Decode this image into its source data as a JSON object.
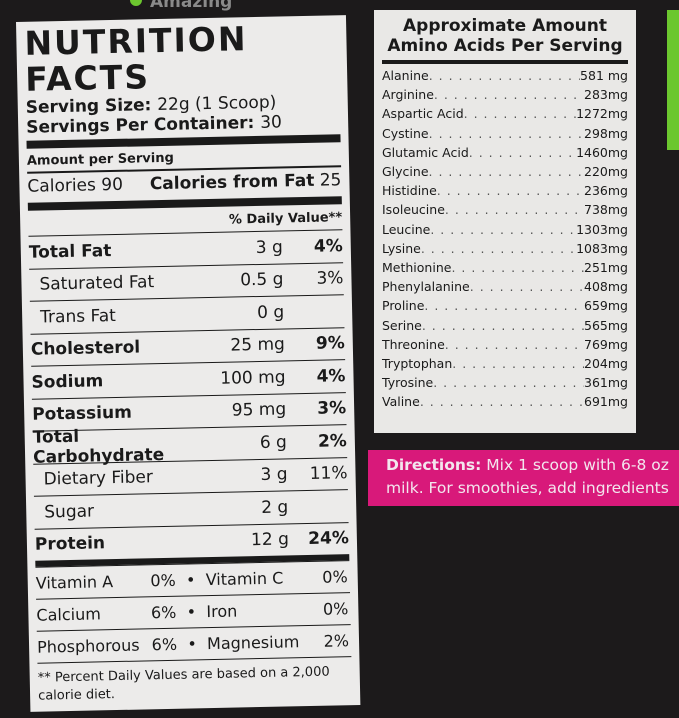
{
  "package": {
    "tagline": "Amazing",
    "accent_green": "#6cc72f",
    "accent_pink": "#d8197a"
  },
  "nutrition": {
    "title": "NUTRITION FACTS",
    "serving_size_label": "Serving Size:",
    "serving_size": "22g (1 Scoop)",
    "servings_label": "Servings Per Container:",
    "servings": "30",
    "amount_per_serving": "Amount per Serving",
    "calories_label": "Calories",
    "calories": "90",
    "calories_fat_label": "Calories from Fat",
    "calories_fat": "25",
    "dv_header": "% Daily Value**",
    "rows": [
      {
        "name": "Total Fat",
        "amount": "3 g",
        "dv": "4%"
      },
      {
        "name": "Saturated Fat",
        "amount": "0.5 g",
        "dv": "3%"
      },
      {
        "name": "Trans Fat",
        "amount": "0 g",
        "dv": ""
      },
      {
        "name": "Cholesterol",
        "amount": "25 mg",
        "dv": "9%"
      },
      {
        "name": "Sodium",
        "amount": "100 mg",
        "dv": "4%"
      },
      {
        "name": "Potassium",
        "amount": "95 mg",
        "dv": "3%"
      },
      {
        "name": "Total Carbohydrate",
        "amount": "6 g",
        "dv": "2%"
      },
      {
        "name": "Dietary Fiber",
        "amount": "3 g",
        "dv": "11%"
      },
      {
        "name": "Sugar",
        "amount": "2 g",
        "dv": ""
      },
      {
        "name": "Protein",
        "amount": "12 g",
        "dv": "24%"
      }
    ],
    "vitamins": [
      [
        {
          "name": "Vitamin A",
          "dv": "0%"
        },
        {
          "name": "Vitamin C",
          "dv": "0%"
        }
      ],
      [
        {
          "name": "Calcium",
          "dv": "6%"
        },
        {
          "name": "Iron",
          "dv": "0%"
        }
      ],
      [
        {
          "name": "Phosphorous",
          "dv": "6%"
        },
        {
          "name": "Magnesium",
          "dv": "2%"
        }
      ]
    ],
    "separator": "•",
    "footnote": "** Percent Daily Values are based on a 2,000 calorie diet."
  },
  "amino": {
    "title_line1": "Approximate Amount",
    "title_line2": "Amino Acids Per Serving",
    "items": [
      {
        "name": "Alanine",
        "amount": "581 mg"
      },
      {
        "name": "Arginine",
        "amount": "283mg"
      },
      {
        "name": "Aspartic Acid",
        "amount": "1272mg"
      },
      {
        "name": "Cystine",
        "amount": "298mg"
      },
      {
        "name": "Glutamic Acid",
        "amount": "1460mg"
      },
      {
        "name": "Glycine",
        "amount": "220mg"
      },
      {
        "name": "Histidine",
        "amount": "236mg"
      },
      {
        "name": "Isoleucine",
        "amount": "738mg"
      },
      {
        "name": "Leucine",
        "amount": "1303mg"
      },
      {
        "name": "Lysine",
        "amount": "1083mg"
      },
      {
        "name": "Methionine",
        "amount": "251mg"
      },
      {
        "name": "Phenylalanine",
        "amount": "408mg"
      },
      {
        "name": "Proline",
        "amount": "659mg"
      },
      {
        "name": "Serine",
        "amount": "565mg"
      },
      {
        "name": "Threonine",
        "amount": "769mg"
      },
      {
        "name": "Tryptophan",
        "amount": "204mg"
      },
      {
        "name": "Tyrosine",
        "amount": "361mg"
      },
      {
        "name": "Valine",
        "amount": "691mg"
      }
    ]
  },
  "directions": {
    "label": "Directions:",
    "line1": "Mix 1 scoop with 6-8 oz",
    "line2": "milk. For smoothies, add ingredients"
  }
}
